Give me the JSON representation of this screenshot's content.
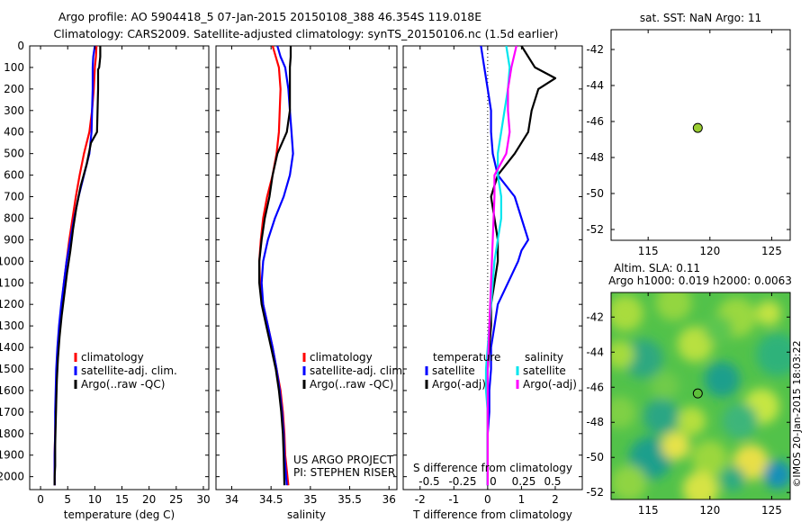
{
  "header": {
    "line1": "Argo profile: AO 5904418_5 07-Jan-2015 20150108_388 46.354S 119.018E",
    "line2": "Climatology: CARS2009. Satellite-adjusted climatology: synTS_20150106.nc (1.5d earlier)"
  },
  "colors": {
    "climatology": "#ff0000",
    "satellite": "#0000ff",
    "argo": "#000000",
    "cyan": "#00e5ee",
    "magenta": "#ff00ff",
    "marker": "#9acd32"
  },
  "chart_data": [
    {
      "type": "line",
      "xlabel": "temperature (deg C)",
      "xlim": [
        -2,
        31
      ],
      "ylim": [
        2060,
        0
      ],
      "xticks": [
        "0",
        "5",
        "10",
        "15",
        "20",
        "25",
        "30"
      ],
      "yticks": [
        "0",
        "100",
        "200",
        "300",
        "400",
        "500",
        "600",
        "700",
        "800",
        "900",
        "1000",
        "1100",
        "1200",
        "1300",
        "1400",
        "1500",
        "1600",
        "1700",
        "1800",
        "1900",
        "2000"
      ],
      "legend": [
        "climatology",
        "satellite-adj. clim.",
        "Argo(..raw -QC)"
      ],
      "series": [
        {
          "name": "climatology",
          "x": [
            10.3,
            10.2,
            10.0,
            9.8,
            9.5,
            9.0,
            8.0,
            7.2,
            6.5,
            5.9,
            5.3,
            4.8,
            4.3,
            3.9,
            3.5,
            3.2,
            3.0,
            2.9,
            2.8,
            2.7,
            2.6,
            2.6
          ],
          "y": [
            0,
            50,
            100,
            200,
            300,
            400,
            500,
            600,
            700,
            800,
            900,
            1000,
            1100,
            1200,
            1300,
            1400,
            1500,
            1600,
            1700,
            1800,
            1900,
            2040
          ]
        },
        {
          "name": "satellite-adj. clim.",
          "x": [
            10.0,
            9.7,
            9.6,
            9.6,
            9.5,
            9.4,
            9.0,
            8.0,
            7.0,
            6.2,
            5.5,
            4.8,
            4.3,
            3.8,
            3.4,
            3.1,
            2.9,
            2.8,
            2.7,
            2.7,
            2.6,
            2.6
          ],
          "y": [
            0,
            50,
            100,
            200,
            300,
            400,
            500,
            600,
            700,
            800,
            900,
            1000,
            1100,
            1200,
            1300,
            1400,
            1500,
            1600,
            1700,
            1800,
            1900,
            2040
          ]
        },
        {
          "name": "Argo(..raw -QC)",
          "x": [
            11.0,
            11.0,
            10.8,
            10.6,
            10.6,
            10.5,
            10.4,
            9.3,
            8.5,
            7.4,
            6.6,
            6.0,
            5.5,
            4.9,
            4.4,
            3.9,
            3.5,
            3.2,
            3.0,
            2.9,
            2.8,
            2.7,
            2.7,
            2.6,
            2.6
          ],
          "y": [
            0,
            50,
            100,
            110,
            200,
            300,
            400,
            450,
            550,
            650,
            750,
            850,
            950,
            1050,
            1150,
            1250,
            1350,
            1450,
            1550,
            1650,
            1750,
            1850,
            1950,
            2000,
            2040
          ]
        }
      ]
    },
    {
      "type": "line",
      "xlabel": "salinity",
      "xlim": [
        33.8,
        36.1
      ],
      "ylim": [
        2060,
        0
      ],
      "xticks": [
        "34",
        "34.5",
        "35",
        "35.5",
        "36"
      ],
      "legend": [
        "climatology",
        "satellite-adj. clim.",
        "Argo(..raw -QC)"
      ],
      "annotation": [
        "US ARGO PROJECT",
        "PI: STEPHEN RISER"
      ],
      "series": [
        {
          "name": "climatology",
          "x": [
            34.52,
            34.56,
            34.6,
            34.62,
            34.61,
            34.6,
            34.57,
            34.52,
            34.45,
            34.4,
            34.37,
            34.35,
            34.36,
            34.4,
            34.46,
            34.52,
            34.57,
            34.62,
            34.65,
            34.67,
            34.68,
            34.72
          ],
          "y": [
            0,
            50,
            100,
            200,
            300,
            400,
            500,
            600,
            700,
            800,
            900,
            1000,
            1100,
            1200,
            1300,
            1400,
            1500,
            1600,
            1700,
            1800,
            1900,
            2040
          ]
        },
        {
          "name": "satellite-adj. clim.",
          "x": [
            34.58,
            34.62,
            34.68,
            34.72,
            34.74,
            34.76,
            34.78,
            34.74,
            34.66,
            34.55,
            34.46,
            34.4,
            34.38,
            34.4,
            34.46,
            34.52,
            34.57,
            34.61,
            34.64,
            34.66,
            34.67,
            34.7
          ],
          "y": [
            0,
            50,
            100,
            200,
            300,
            400,
            500,
            600,
            700,
            800,
            900,
            1000,
            1100,
            1200,
            1300,
            1400,
            1500,
            1600,
            1700,
            1800,
            1900,
            2040
          ]
        },
        {
          "name": "Argo(..raw -QC)",
          "x": [
            34.75,
            34.75,
            34.74,
            34.74,
            34.74,
            34.7,
            34.58,
            34.52,
            34.48,
            34.42,
            34.38,
            34.35,
            34.35,
            34.38,
            34.44,
            34.5,
            34.56,
            34.6,
            34.63,
            34.65,
            34.66,
            34.67
          ],
          "y": [
            0,
            50,
            100,
            200,
            300,
            400,
            500,
            600,
            700,
            800,
            900,
            1000,
            1100,
            1200,
            1300,
            1400,
            1500,
            1600,
            1700,
            1800,
            1900,
            2040
          ]
        }
      ]
    },
    {
      "type": "line",
      "xlabel": "T difference from climatology",
      "xlabel_top": "S difference from climatology",
      "xlim": [
        -2.5,
        2.8
      ],
      "ylim": [
        2060,
        0
      ],
      "xticks": [
        "-2",
        "-1",
        "0",
        "1",
        "2"
      ],
      "xticks_top": [
        "-0.5",
        "-0.25",
        "0",
        "0.25",
        "0.5"
      ],
      "legend_temperature_title": "temperature",
      "legend_salinity_title": "salinity",
      "legend": [
        "satellite",
        "Argo(-adj)",
        "satellite",
        "Argo(-adj)"
      ],
      "series": [
        {
          "name": "temperature satellite",
          "x": [
            -0.2,
            -0.1,
            0.0,
            0.1,
            0.1,
            0.15,
            0.3,
            0.8,
            1.0,
            1.2,
            1.0,
            0.9,
            0.6,
            0.3,
            0.2,
            0.1,
            0.1,
            0.05,
            0.05,
            0.0,
            0.0
          ],
          "y": [
            0,
            100,
            200,
            300,
            400,
            500,
            600,
            700,
            800,
            900,
            950,
            1000,
            1100,
            1200,
            1300,
            1400,
            1500,
            1600,
            1700,
            1800,
            2040
          ]
        },
        {
          "name": "temperature Argo(-adj)",
          "x": [
            1.0,
            1.4,
            2.0,
            1.5,
            1.3,
            1.2,
            0.8,
            0.3,
            0.1,
            0.2,
            0.3,
            0.3,
            0.2,
            0.1,
            0.1,
            0.05,
            0.0,
            0.0,
            0.0,
            0.0
          ],
          "y": [
            0,
            100,
            150,
            200,
            300,
            400,
            500,
            600,
            700,
            800,
            900,
            1000,
            1100,
            1200,
            1300,
            1400,
            1500,
            1600,
            1800,
            2040
          ]
        },
        {
          "name": "salinity satellite",
          "x": [
            0.55,
            0.65,
            0.6,
            0.5,
            0.4,
            0.3,
            0.3,
            0.4,
            0.4,
            0.3,
            0.2,
            0.15,
            0.1,
            0.05,
            0.0,
            -0.05,
            -0.05,
            0.0,
            0.0,
            0.0
          ],
          "y": [
            0,
            100,
            200,
            300,
            400,
            500,
            600,
            700,
            800,
            900,
            1000,
            1100,
            1200,
            1300,
            1400,
            1500,
            1600,
            1700,
            1800,
            2040
          ]
        },
        {
          "name": "salinity Argo(-adj)",
          "x": [
            0.85,
            0.7,
            0.6,
            0.6,
            0.65,
            0.55,
            0.2,
            0.2,
            0.15,
            0.1,
            0.05,
            0.0,
            0.0,
            0.0,
            0.0
          ],
          "y": [
            0,
            100,
            200,
            300,
            400,
            500,
            600,
            700,
            900,
            1100,
            1300,
            1500,
            1700,
            1900,
            2040
          ]
        }
      ]
    },
    {
      "type": "scatter",
      "title": "sat. SST: NaN Argo: 11",
      "xlim": [
        112,
        126.5
      ],
      "ylim": [
        -52.6,
        -40.9
      ],
      "xticks": [
        "115",
        "120",
        "125"
      ],
      "yticks": [
        "-42",
        "-44",
        "-46",
        "-48",
        "-50",
        "-52"
      ],
      "points": [
        {
          "x": 119.018,
          "y": -46.354
        }
      ]
    },
    {
      "type": "heatmap",
      "title_line1": "Altim. SLA: 0.11",
      "title_line2": "Argo h1000: 0.019 h2000: 0.0063",
      "xlim": [
        112,
        126.5
      ],
      "ylim": [
        -52.4,
        -40.6
      ],
      "xticks": [
        "115",
        "120",
        "125"
      ],
      "yticks": [
        "-42",
        "-44",
        "-46",
        "-48",
        "-50",
        "-52"
      ],
      "points": [
        {
          "x": 119.018,
          "y": -46.354
        }
      ]
    }
  ],
  "footer": {
    "credit": "©IMOS 20-Jan-2015 18:03:22"
  }
}
